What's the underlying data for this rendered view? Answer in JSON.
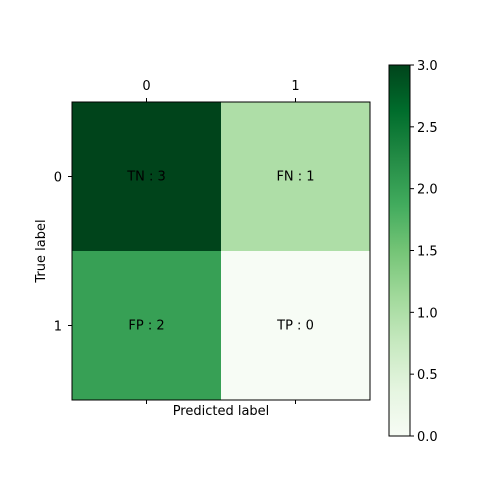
{
  "chart_data": {
    "type": "heatmap",
    "title": "",
    "xlabel": "Predicted label",
    "ylabel": "True label",
    "x_categories": [
      "0",
      "1"
    ],
    "y_categories": [
      "0",
      "1"
    ],
    "values": [
      [
        3,
        1
      ],
      [
        2,
        0
      ]
    ],
    "cell_labels": [
      [
        "TN : 3",
        "FN : 1"
      ],
      [
        "FP : 2",
        "TP : 0"
      ]
    ],
    "x_tick_position": "top",
    "colormap": "Greens",
    "colorbar": {
      "range": [
        0,
        3
      ],
      "ticks": [
        "0.0",
        "0.5",
        "1.0",
        "1.5",
        "2.0",
        "2.5",
        "3.0"
      ]
    },
    "grid": false
  }
}
